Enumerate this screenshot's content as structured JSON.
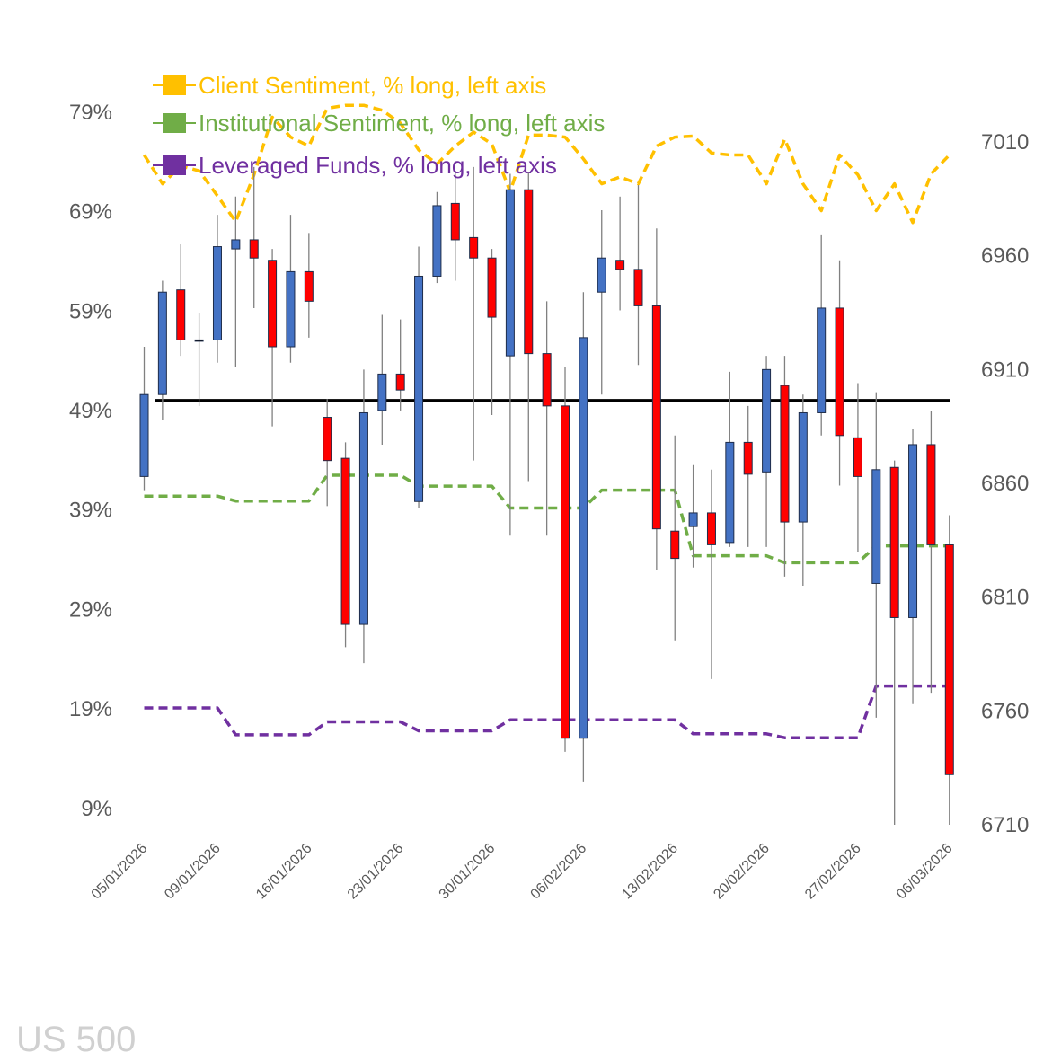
{
  "chart_data": {
    "type": "candlestick",
    "watermark": "US 500",
    "colors": {
      "up": "#4472C4",
      "down": "#FF0000",
      "wick": "#808080",
      "reference": "#000000"
    },
    "categories": [
      "05/01/2026",
      "06/01/2026",
      "07/01/2026",
      "08/01/2026",
      "09/01/2026",
      "12/01/2026",
      "13/01/2026",
      "14/01/2026",
      "15/01/2026",
      "16/01/2026",
      "19/01/2026",
      "20/01/2026",
      "21/01/2026",
      "22/01/2026",
      "23/01/2026",
      "26/01/2026",
      "27/01/2026",
      "28/01/2026",
      "29/01/2026",
      "30/01/2026",
      "02/02/2026",
      "03/02/2026",
      "04/02/2026",
      "05/02/2026",
      "06/02/2026",
      "09/02/2026",
      "10/02/2026",
      "11/02/2026",
      "12/02/2026",
      "13/02/2026",
      "16/02/2026",
      "17/02/2026",
      "18/02/2026",
      "19/02/2026",
      "20/02/2026",
      "23/02/2026",
      "24/02/2026",
      "25/02/2026",
      "26/02/2026",
      "27/02/2026",
      "02/03/2026",
      "03/03/2026",
      "04/03/2026",
      "05/03/2026",
      "06/03/2026"
    ],
    "x_tick_labels": [
      "05/01/2026",
      "09/01/2026",
      "16/01/2026",
      "23/01/2026",
      "30/01/2026",
      "06/02/2026",
      "13/02/2026",
      "20/02/2026",
      "27/02/2026",
      "06/03/2026"
    ],
    "x_tick_index": [
      0,
      4,
      9,
      14,
      19,
      24,
      29,
      34,
      39,
      44
    ],
    "ohlc": {
      "open": [
        6863,
        6899,
        6945,
        6923,
        6923,
        6963,
        6967,
        6958,
        6920,
        6953,
        6889,
        6871,
        6798,
        6892,
        6908,
        6852,
        6951,
        6983,
        6968,
        6959,
        6916,
        6989,
        6917,
        6894,
        6748,
        6944,
        6958,
        6954,
        6938,
        6839,
        6841,
        6847,
        6834,
        6878,
        6865,
        6903,
        6843,
        6891,
        6937,
        6880,
        6816,
        6867,
        6801,
        6877,
        6833
      ],
      "high": [
        6920,
        6949,
        6965,
        6935,
        6978,
        6986,
        6999,
        6963,
        6978,
        6970,
        6897,
        6878,
        6910,
        6934,
        6932,
        6964,
        6988,
        6997,
        6999,
        6963,
        6996,
        6997,
        6940,
        6911,
        6944,
        6980,
        6986,
        6991,
        6972,
        6881,
        6868,
        6866,
        6909,
        6894,
        6916,
        6916,
        6899,
        6969,
        6958,
        6904,
        6900,
        6870,
        6884,
        6892,
        6846
      ],
      "low": [
        6857,
        6888,
        6916,
        6894,
        6913,
        6911,
        6937,
        6885,
        6913,
        6924,
        6850,
        6788,
        6781,
        6877,
        6892,
        6849,
        6948,
        6949,
        6870,
        6890,
        6837,
        6861,
        6837,
        6742,
        6729,
        6899,
        6936,
        6912,
        6822,
        6791,
        6823,
        6774,
        6832,
        6832,
        6832,
        6819,
        6815,
        6881,
        6859,
        6830,
        6757,
        6710,
        6763,
        6768,
        6710
      ],
      "close": [
        6899,
        6944,
        6923,
        6923,
        6964,
        6967,
        6959,
        6920,
        6953,
        6940,
        6870,
        6798,
        6891,
        6908,
        6901,
        6951,
        6982,
        6967,
        6959,
        6933,
        6989,
        6917,
        6894,
        6748,
        6924,
        6959,
        6954,
        6938,
        6840,
        6827,
        6847,
        6833,
        6878,
        6864,
        6910,
        6843,
        6891,
        6937,
        6881,
        6863,
        6866,
        6801,
        6877,
        6833,
        6732
      ]
    },
    "series": [
      {
        "name": "Client Sentiment, % long, left axis",
        "color": "#FFC000",
        "axis": "left",
        "values": [
          74.7,
          71.8,
          73.6,
          73.1,
          70.6,
          68.0,
          72.7,
          78.5,
          76.5,
          75.6,
          79.4,
          79.7,
          79.7,
          79.2,
          77.9,
          75.2,
          73.8,
          75.6,
          77.0,
          75.8,
          71.0,
          76.7,
          76.7,
          76.5,
          74.3,
          71.8,
          72.5,
          71.8,
          75.6,
          76.5,
          76.6,
          74.9,
          74.7,
          74.7,
          71.8,
          76.3,
          71.8,
          69.1,
          74.7,
          72.7,
          69.1,
          71.8,
          67.9,
          72.8,
          74.7
        ]
      },
      {
        "name": "Institutional Sentiment, % long, left axis",
        "color": "#70AD47",
        "axis": "left",
        "values": [
          40.4,
          40.4,
          40.4,
          40.4,
          40.4,
          39.9,
          39.9,
          39.9,
          39.9,
          39.9,
          42.5,
          42.5,
          42.5,
          42.5,
          42.5,
          41.4,
          41.4,
          41.4,
          41.4,
          41.4,
          39.2,
          39.2,
          39.2,
          39.2,
          39.2,
          41.0,
          41.0,
          41.0,
          41.0,
          41.0,
          34.4,
          34.4,
          34.4,
          34.4,
          34.4,
          33.7,
          33.7,
          33.7,
          33.7,
          33.7,
          35.4,
          35.4,
          35.4,
          35.4,
          35.4
        ]
      },
      {
        "name": "Leveraged Funds, % long, left axis",
        "color": "#7030A0",
        "axis": "left",
        "values": [
          19.1,
          19.1,
          19.1,
          19.1,
          19.1,
          16.4,
          16.4,
          16.4,
          16.4,
          16.4,
          17.7,
          17.7,
          17.7,
          17.7,
          17.7,
          16.8,
          16.8,
          16.8,
          16.8,
          16.8,
          17.9,
          17.9,
          17.9,
          17.9,
          17.9,
          17.9,
          17.9,
          17.9,
          17.9,
          17.9,
          16.5,
          16.5,
          16.5,
          16.5,
          16.5,
          16.1,
          16.1,
          16.1,
          16.1,
          16.1,
          21.3,
          21.3,
          21.3,
          21.3,
          21.3
        ]
      }
    ],
    "reference_line": {
      "axis": "left",
      "value": 50
    },
    "y_left": {
      "ticks": [
        "9%",
        "19%",
        "29%",
        "39%",
        "49%",
        "59%",
        "69%",
        "79%"
      ],
      "tick_values": [
        9,
        19,
        29,
        39,
        49,
        59,
        69,
        79
      ]
    },
    "y_right": {
      "ticks": [
        "6710",
        "6760",
        "6810",
        "6860",
        "6910",
        "6960",
        "7010"
      ],
      "tick_values": [
        6710,
        6760,
        6810,
        6860,
        6910,
        6960,
        7010
      ]
    },
    "grid": false,
    "legend_position": "top-left"
  }
}
